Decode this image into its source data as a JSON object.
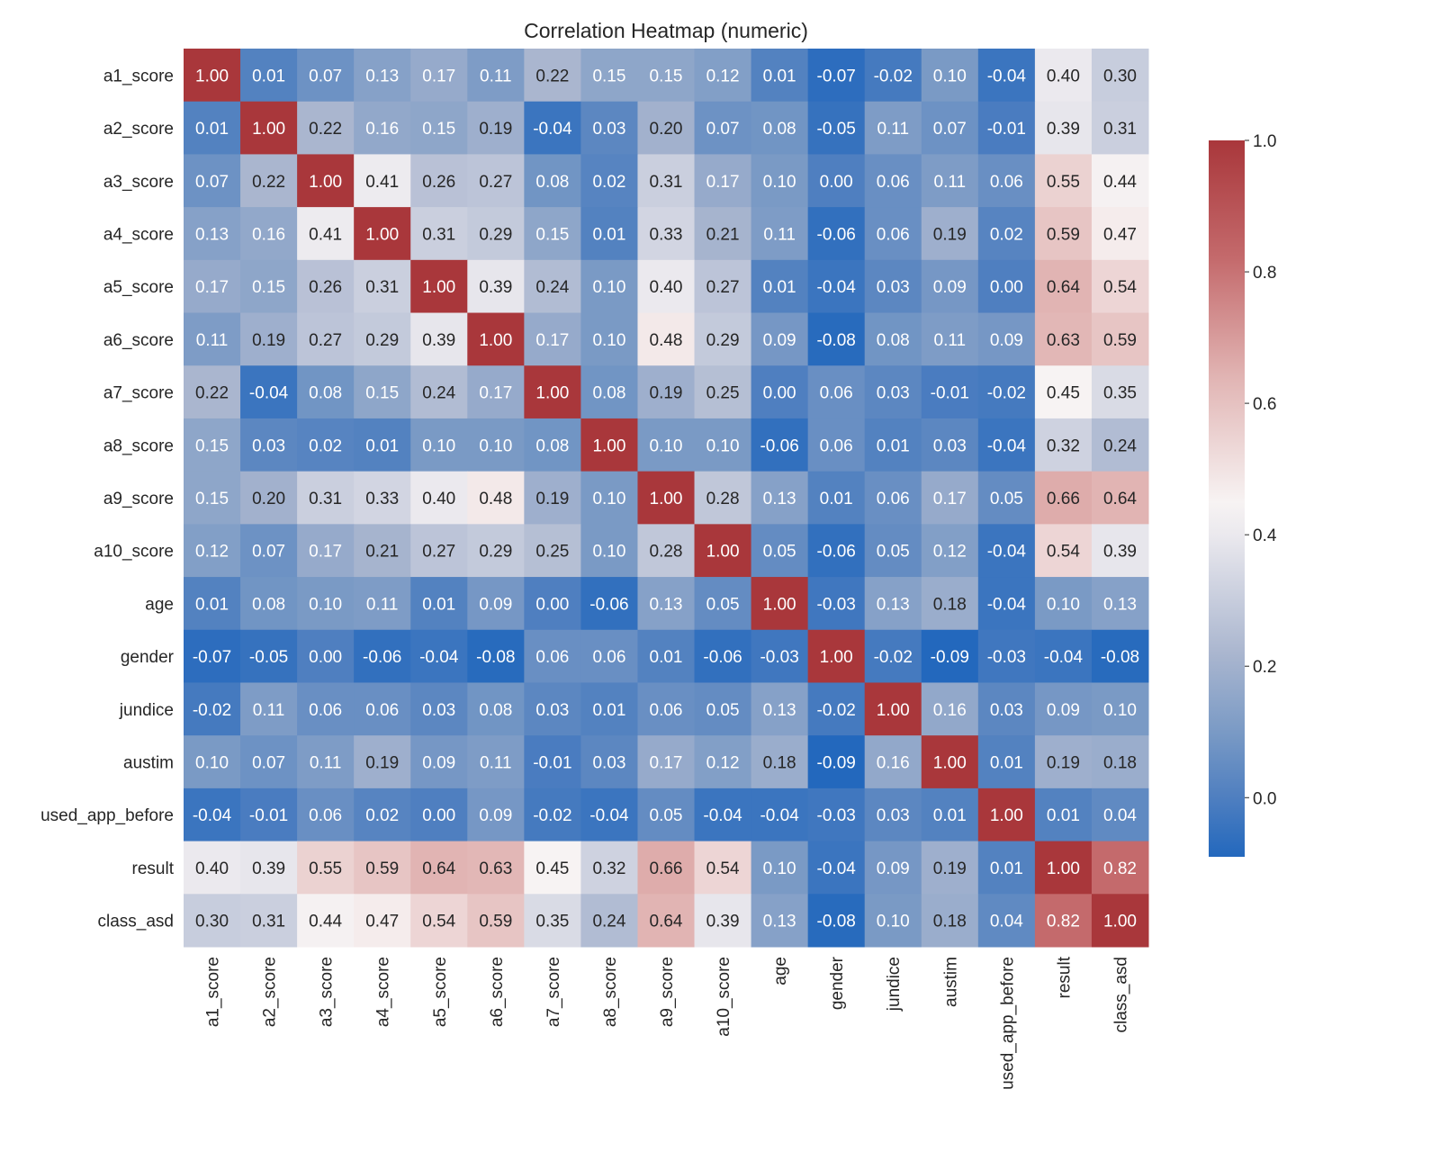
{
  "chart_data": {
    "type": "heatmap",
    "title": "Correlation Heatmap (numeric)",
    "labels": [
      "a1_score",
      "a2_score",
      "a3_score",
      "a4_score",
      "a5_score",
      "a6_score",
      "a7_score",
      "a8_score",
      "a9_score",
      "a10_score",
      "age",
      "gender",
      "jundice",
      "austim",
      "used_app_before",
      "result",
      "class_asd"
    ],
    "matrix": [
      [
        1.0,
        0.01,
        0.07,
        0.13,
        0.17,
        0.11,
        0.22,
        0.15,
        0.15,
        0.12,
        0.01,
        -0.07,
        -0.02,
        0.1,
        -0.04,
        0.4,
        0.3
      ],
      [
        0.01,
        1.0,
        0.22,
        0.16,
        0.15,
        0.19,
        -0.04,
        0.03,
        0.2,
        0.07,
        0.08,
        -0.05,
        0.11,
        0.07,
        -0.01,
        0.39,
        0.31
      ],
      [
        0.07,
        0.22,
        1.0,
        0.41,
        0.26,
        0.27,
        0.08,
        0.02,
        0.31,
        0.17,
        0.1,
        -0.0,
        0.06,
        0.11,
        0.06,
        0.55,
        0.44
      ],
      [
        0.13,
        0.16,
        0.41,
        1.0,
        0.31,
        0.29,
        0.15,
        0.01,
        0.33,
        0.21,
        0.11,
        -0.06,
        0.06,
        0.19,
        0.02,
        0.59,
        0.47
      ],
      [
        0.17,
        0.15,
        0.26,
        0.31,
        1.0,
        0.39,
        0.24,
        0.1,
        0.4,
        0.27,
        0.01,
        -0.04,
        0.03,
        0.09,
        0.0,
        0.64,
        0.54
      ],
      [
        0.11,
        0.19,
        0.27,
        0.29,
        0.39,
        1.0,
        0.17,
        0.1,
        0.48,
        0.29,
        0.09,
        -0.08,
        0.08,
        0.11,
        0.09,
        0.63,
        0.59
      ],
      [
        0.22,
        -0.04,
        0.08,
        0.15,
        0.24,
        0.17,
        1.0,
        0.08,
        0.19,
        0.25,
        -0.0,
        0.06,
        0.03,
        -0.01,
        -0.02,
        0.45,
        0.35
      ],
      [
        0.15,
        0.03,
        0.02,
        0.01,
        0.1,
        0.1,
        0.08,
        1.0,
        0.1,
        0.1,
        -0.06,
        0.06,
        0.01,
        0.03,
        -0.04,
        0.32,
        0.24
      ],
      [
        0.15,
        0.2,
        0.31,
        0.33,
        0.4,
        0.48,
        0.19,
        0.1,
        1.0,
        0.28,
        0.13,
        0.01,
        0.06,
        0.17,
        0.05,
        0.66,
        0.64
      ],
      [
        0.12,
        0.07,
        0.17,
        0.21,
        0.27,
        0.29,
        0.25,
        0.1,
        0.28,
        1.0,
        0.05,
        -0.06,
        0.05,
        0.12,
        -0.04,
        0.54,
        0.39
      ],
      [
        0.01,
        0.08,
        0.1,
        0.11,
        0.01,
        0.09,
        -0.0,
        -0.06,
        0.13,
        0.05,
        1.0,
        -0.03,
        0.13,
        0.18,
        -0.04,
        0.1,
        0.13
      ],
      [
        -0.07,
        -0.05,
        -0.0,
        -0.06,
        -0.04,
        -0.08,
        0.06,
        0.06,
        0.01,
        -0.06,
        -0.03,
        1.0,
        -0.02,
        -0.09,
        -0.03,
        -0.04,
        -0.08
      ],
      [
        -0.02,
        0.11,
        0.06,
        0.06,
        0.03,
        0.08,
        0.03,
        0.01,
        0.06,
        0.05,
        0.13,
        -0.02,
        1.0,
        0.16,
        0.03,
        0.09,
        0.1
      ],
      [
        0.1,
        0.07,
        0.11,
        0.19,
        0.09,
        0.11,
        -0.01,
        0.03,
        0.17,
        0.12,
        0.18,
        -0.09,
        0.16,
        1.0,
        0.01,
        0.19,
        0.18
      ],
      [
        -0.04,
        -0.01,
        0.06,
        0.02,
        0.0,
        0.09,
        -0.02,
        -0.04,
        0.05,
        -0.04,
        -0.04,
        -0.03,
        0.03,
        0.01,
        1.0,
        0.01,
        0.04
      ],
      [
        0.4,
        0.39,
        0.55,
        0.59,
        0.64,
        0.63,
        0.45,
        0.32,
        0.66,
        0.54,
        0.1,
        -0.04,
        0.09,
        0.19,
        0.01,
        1.0,
        0.82
      ],
      [
        0.3,
        0.31,
        0.44,
        0.47,
        0.54,
        0.59,
        0.35,
        0.24,
        0.64,
        0.39,
        0.13,
        -0.08,
        0.1,
        0.18,
        0.04,
        0.82,
        1.0
      ]
    ],
    "value_format": "0.00",
    "colorbar": {
      "range": [
        -0.09,
        1.0
      ],
      "ticks": [
        "0.0",
        "0.2",
        "0.4",
        "0.6",
        "0.8",
        "1.0"
      ],
      "tick_values": [
        0.0,
        0.2,
        0.4,
        0.6,
        0.8,
        1.0
      ],
      "placement": "right"
    },
    "colormap": {
      "name": "vlag",
      "low": "#2368bd",
      "mid": "#f7f3f3",
      "high": "#a9373b"
    },
    "grid": false
  }
}
